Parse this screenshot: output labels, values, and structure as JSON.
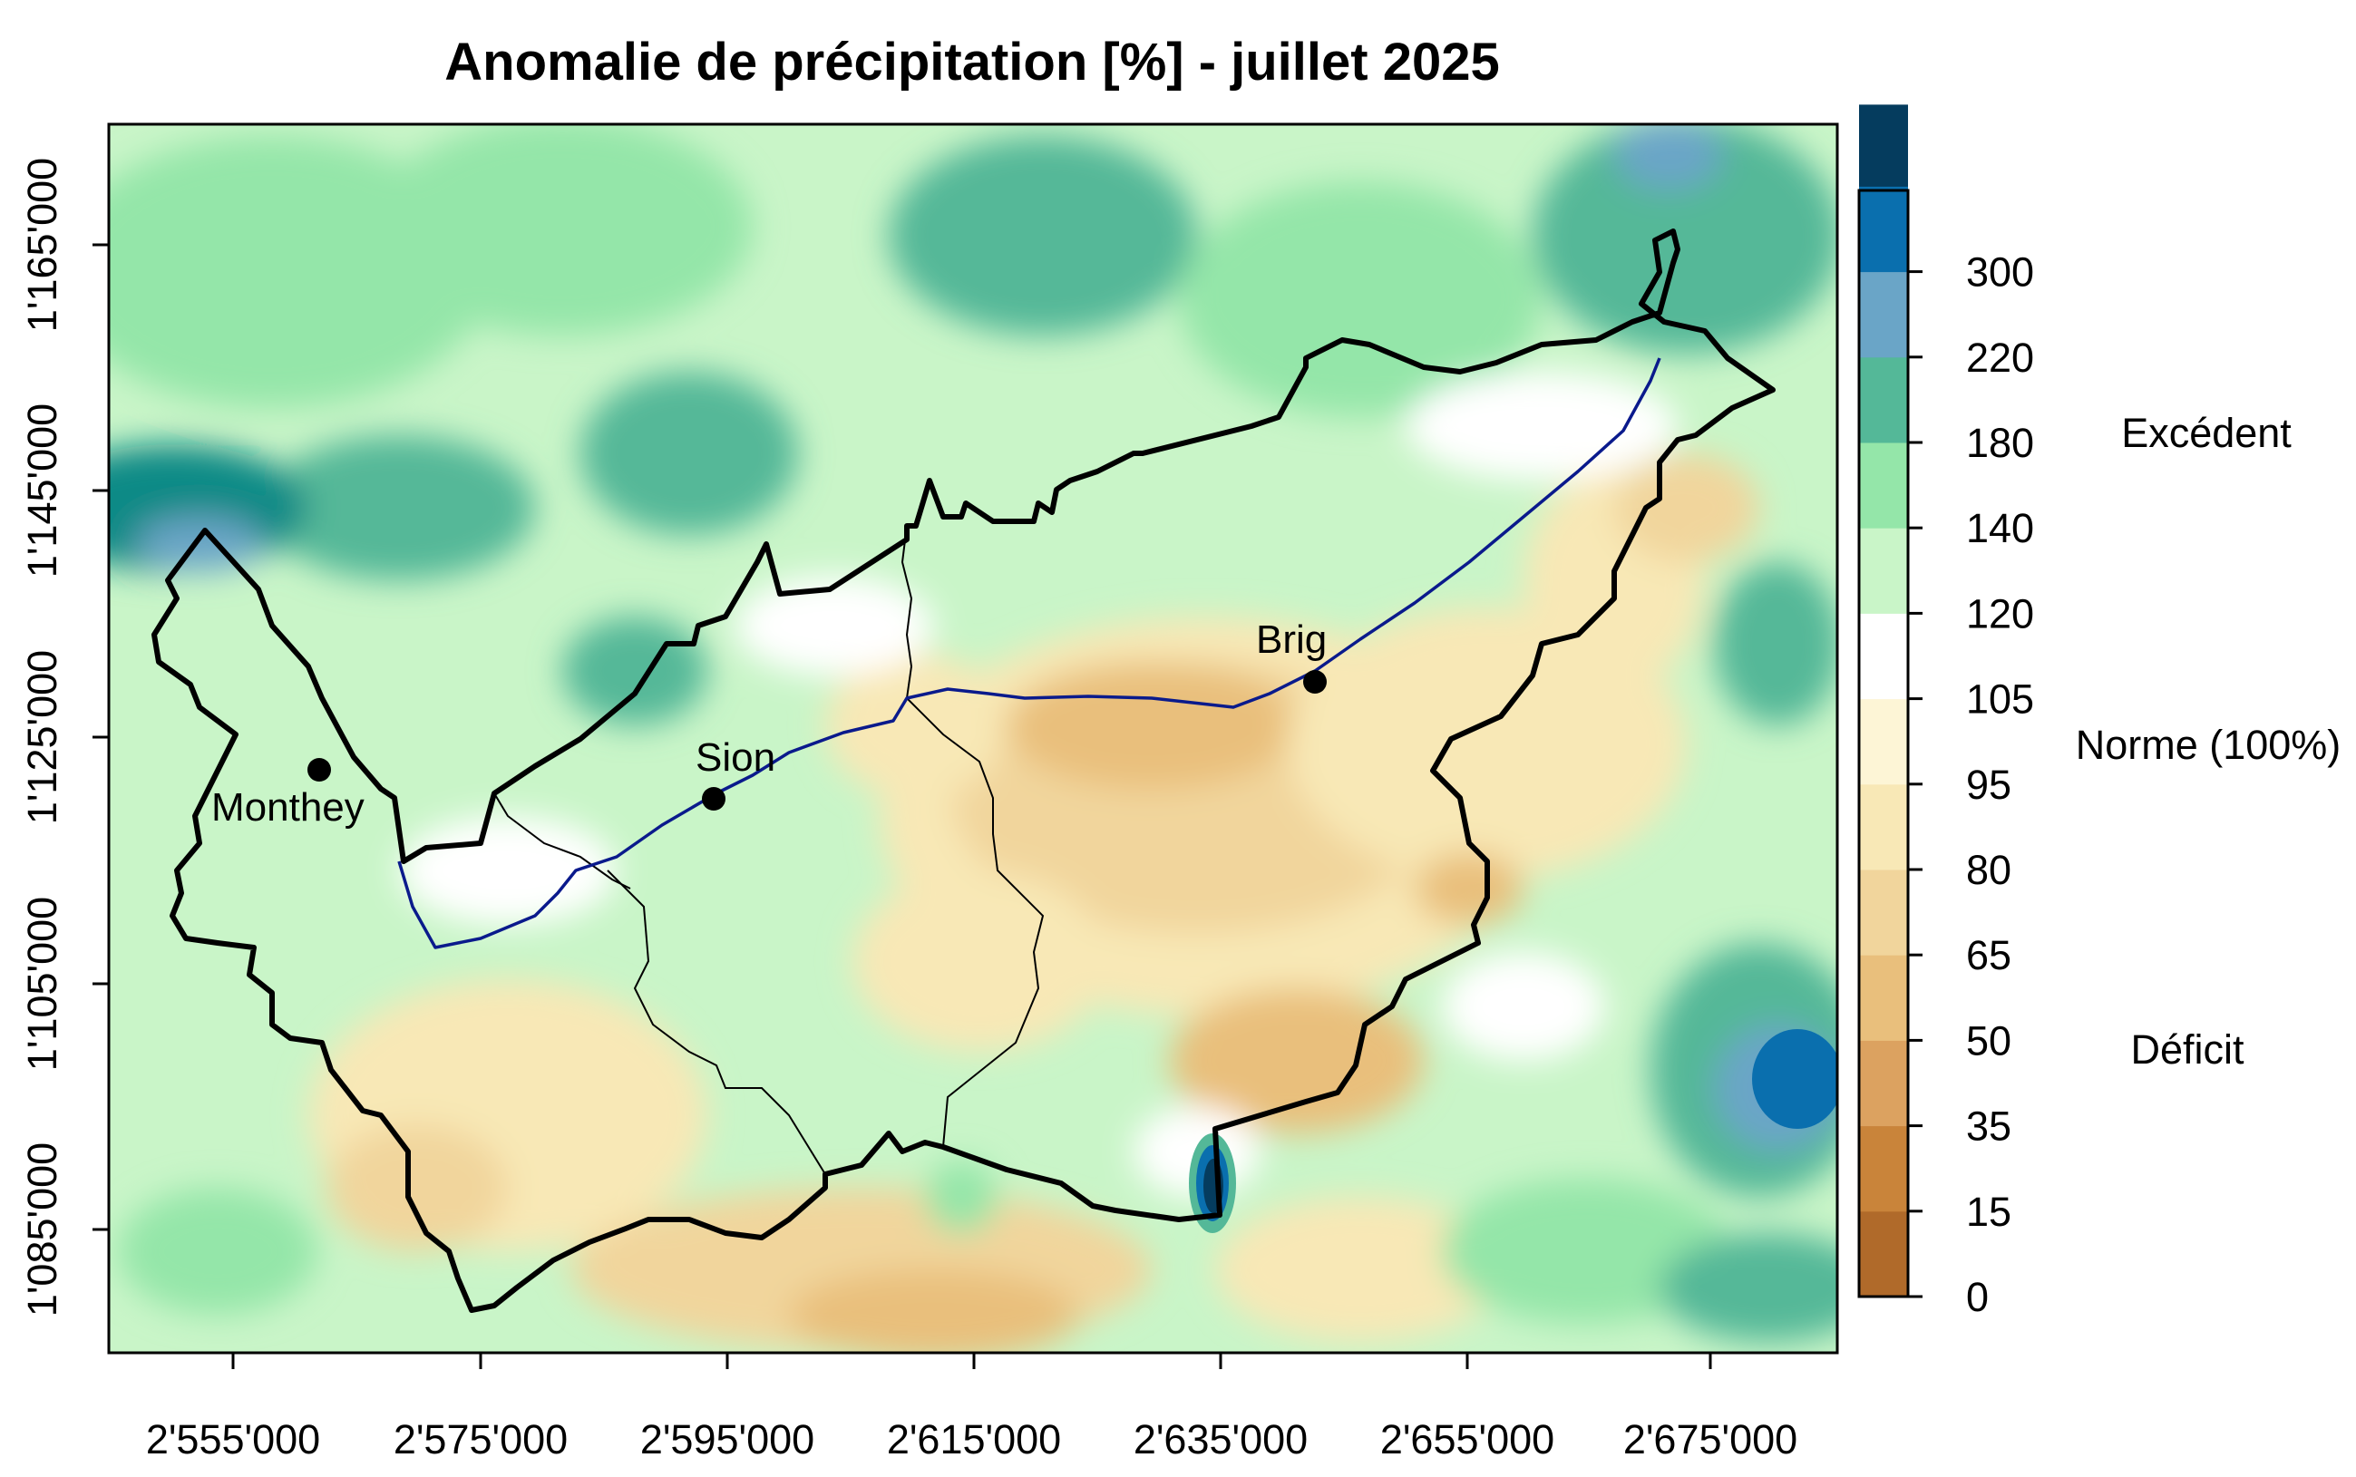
{
  "title": "Anomalie de précipitation [%] - juillet 2025",
  "x_ticks": [
    "2'555'000",
    "2'575'000",
    "2'595'000",
    "2'615'000",
    "2'635'000",
    "2'655'000",
    "2'675'000"
  ],
  "y_ticks": [
    "1'085'000",
    "1'105'000",
    "1'125'000",
    "1'145'000",
    "1'165'000"
  ],
  "cities": [
    {
      "name": "Monthey"
    },
    {
      "name": "Sion"
    },
    {
      "name": "Brig"
    }
  ],
  "legend": {
    "levels": [
      "0",
      "15",
      "35",
      "50",
      "65",
      "80",
      "95",
      "105",
      "120",
      "140",
      "180",
      "220",
      "300"
    ],
    "colors": [
      "#b06a2a",
      "#c9843a",
      "#dca260",
      "#e9bf7c",
      "#f1d59c",
      "#f8e8b6",
      "#fdf5d6",
      "#ffffff",
      "#c9f5c8",
      "#94e6a9",
      "#54b898",
      "#6aa5c7",
      "#0a6fae",
      "#053c5e"
    ],
    "label_excess": "Excédent",
    "label_norm": "Norme (100%)",
    "label_deficit": "Déficit"
  },
  "colors": {
    "river": "#0a1a8c",
    "border": "#000000"
  }
}
